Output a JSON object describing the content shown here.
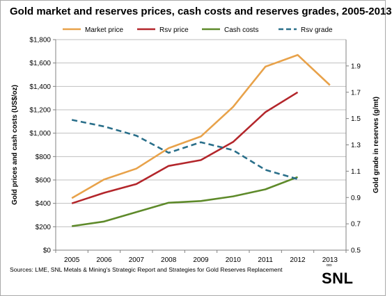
{
  "chart_data": {
    "type": "line",
    "title": "Gold market and reserves prices, cash costs and reserves grades, 2005-2013",
    "categories": [
      "2005",
      "2006",
      "2007",
      "2008",
      "2009",
      "2010",
      "2011",
      "2012",
      "2013"
    ],
    "ylabel": "Gold prices and cash costs (US$/oz)",
    "y2label": "Gold grade in reserves (g/mt)",
    "ylim": [
      0,
      1800
    ],
    "y2lim": [
      0.5,
      2.1
    ],
    "yticks": [
      "$0",
      "$200",
      "$400",
      "$600",
      "$800",
      "$1,000",
      "$1,200",
      "$1,400",
      "$1,600",
      "$1,800"
    ],
    "y2ticks": [
      "0.5",
      "0.7",
      "0.9",
      "1.1",
      "1.3",
      "1.5",
      "1.7",
      "1.9"
    ],
    "y2tick_values": [
      0.5,
      0.7,
      0.9,
      1.1,
      1.3,
      1.5,
      1.7,
      1.9
    ],
    "legend_position": "top",
    "series": [
      {
        "name": "Market price",
        "axis": "left",
        "color": "#e8a24a",
        "style": "solid",
        "values": [
          445,
          604,
          697,
          872,
          972,
          1225,
          1569,
          1669,
          1411
        ]
      },
      {
        "name": "Rsv price",
        "axis": "left",
        "color": "#b3262b",
        "style": "solid",
        "values": [
          400,
          490,
          565,
          720,
          770,
          925,
          1180,
          1350,
          null
        ]
      },
      {
        "name": "Cash costs",
        "axis": "left",
        "color": "#5e8a2a",
        "style": "solid",
        "values": [
          205,
          245,
          325,
          405,
          420,
          460,
          520,
          625,
          null
        ]
      },
      {
        "name": "Rsv grade",
        "axis": "right",
        "color": "#2a6f8a",
        "style": "dashed",
        "values": [
          1.49,
          1.44,
          1.37,
          1.24,
          1.32,
          1.26,
          1.11,
          1.04,
          null
        ]
      }
    ]
  },
  "source": "Sources: LME, SNL Metals & Mining's Strategic Report and Strategies for Gold Reserves Replacement",
  "brand": "SNL"
}
